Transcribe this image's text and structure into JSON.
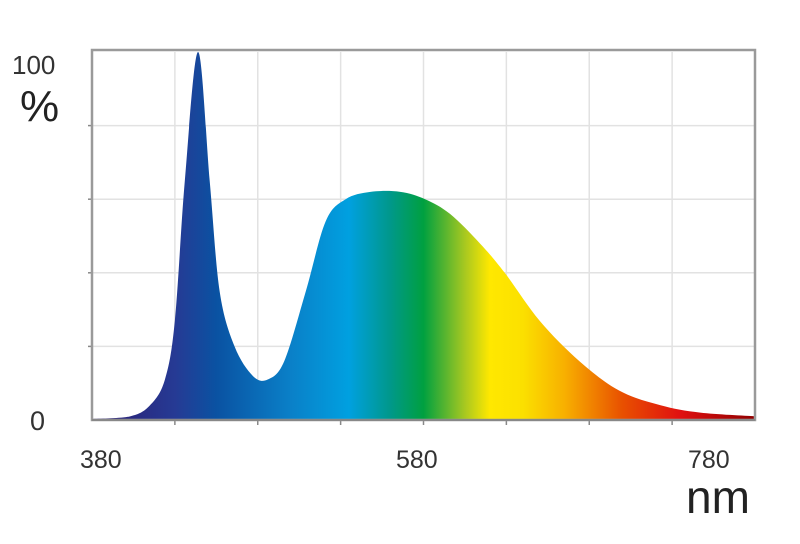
{
  "chart_data": {
    "type": "area",
    "title": "",
    "xlabel": "nm",
    "ylabel": "%",
    "xlim": [
      380,
      780
    ],
    "ylim": [
      0,
      100
    ],
    "x_tick_labels": [
      "380",
      "580",
      "780"
    ],
    "y_tick_labels": [
      "0",
      "100"
    ],
    "x_grid_step": 50,
    "y_grid_step": 20,
    "grid": true,
    "fill": "visible-spectrum gradient",
    "x": [
      380,
      403,
      415,
      424,
      430,
      436,
      444,
      451,
      457,
      466,
      477,
      486,
      496,
      509,
      521,
      533,
      548,
      566,
      581,
      596,
      614,
      629,
      650,
      674,
      698,
      723,
      747,
      780
    ],
    "y": [
      0.3,
      1,
      4,
      11,
      27,
      65,
      100,
      65,
      35,
      20,
      12,
      11,
      16,
      35,
      54,
      60,
      62,
      62,
      60,
      56,
      48,
      40,
      27,
      16,
      8,
      4,
      2,
      1
    ],
    "gradient_stops": [
      {
        "nm": 380,
        "color": "#2b1a6e"
      },
      {
        "nm": 430,
        "color": "#263a94"
      },
      {
        "nm": 455,
        "color": "#0a52a2"
      },
      {
        "nm": 500,
        "color": "#0a80c8"
      },
      {
        "nm": 535,
        "color": "#00a0e0"
      },
      {
        "nm": 560,
        "color": "#00988a"
      },
      {
        "nm": 580,
        "color": "#00a040"
      },
      {
        "nm": 605,
        "color": "#a8c820"
      },
      {
        "nm": 620,
        "color": "#ffe800"
      },
      {
        "nm": 640,
        "color": "#fbe000"
      },
      {
        "nm": 665,
        "color": "#f8b000"
      },
      {
        "nm": 700,
        "color": "#e85000"
      },
      {
        "nm": 735,
        "color": "#e01010"
      },
      {
        "nm": 780,
        "color": "#900000"
      }
    ]
  }
}
